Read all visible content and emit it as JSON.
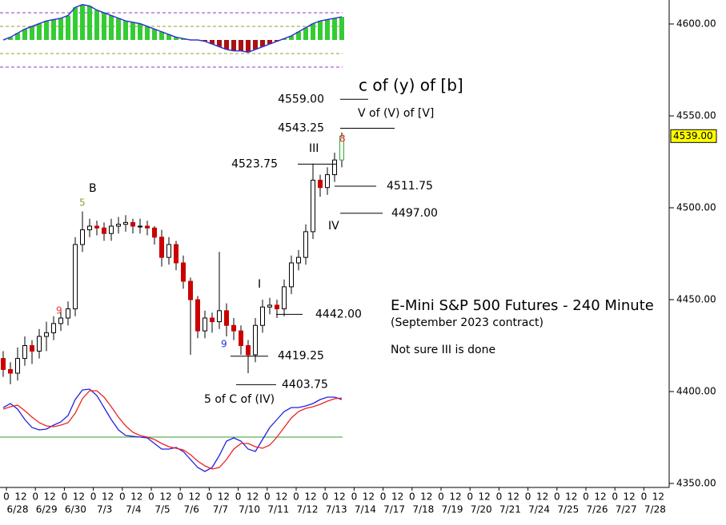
{
  "chart_data": {
    "type": "candlestick",
    "title": "E-Mini S&P 500 Futures - 240 Minute",
    "subtitle": "(September 2023 contract)",
    "note": "Not sure III is done",
    "ylim": [
      4350,
      4600
    ],
    "yticks": [
      {
        "value": 4350,
        "label": "4350.00"
      },
      {
        "value": 4400,
        "label": "4400.00"
      },
      {
        "value": 4450,
        "label": "4450.00"
      },
      {
        "value": 4500,
        "label": "4500.00"
      },
      {
        "value": 4550,
        "label": "4550.00"
      },
      {
        "value": 4600,
        "label": "4600.00"
      }
    ],
    "last_price": {
      "value": 4539,
      "label": "4539.00"
    },
    "dates": [
      "6/28",
      "6/29",
      "6/30",
      "7/3",
      "7/4",
      "7/5",
      "7/6",
      "7/7",
      "7/10",
      "7/11",
      "7/12",
      "7/13",
      "7/14",
      "7/17",
      "7/18",
      "7/19",
      "7/20",
      "7/21",
      "7/24",
      "7/25",
      "7/26",
      "7/27",
      "7/28"
    ],
    "hour_ticks": [
      "0",
      "12"
    ],
    "candles": [
      [
        4418,
        4422,
        4408,
        4412
      ],
      [
        4412,
        4416,
        4404,
        4410
      ],
      [
        4410,
        4424,
        4406,
        4418
      ],
      [
        4418,
        4430,
        4414,
        4425
      ],
      [
        4425,
        4428,
        4415,
        4422
      ],
      [
        4422,
        4434,
        4418,
        4430
      ],
      [
        4430,
        4438,
        4422,
        4432
      ],
      [
        4432,
        4441,
        4428,
        4437
      ],
      [
        4437,
        4444,
        4433,
        4440
      ],
      [
        4440,
        4449,
        4436,
        4445
      ],
      [
        4445,
        4484,
        4441,
        4480
      ],
      [
        4480,
        4498,
        4476,
        4488
      ],
      [
        4488,
        4494,
        4484,
        4490
      ],
      [
        4490,
        4493,
        4485,
        4489
      ],
      [
        4489,
        4492,
        4482,
        4486
      ],
      [
        4486,
        4494,
        4482,
        4490
      ],
      [
        4490,
        4495,
        4486,
        4491
      ],
      [
        4491,
        4496,
        4487,
        4492
      ],
      [
        4492,
        4494,
        4486,
        4490
      ],
      [
        4490,
        4494,
        4486,
        4490
      ],
      [
        4490,
        4493,
        4485,
        4489
      ],
      [
        4489,
        4490,
        4480,
        4484
      ],
      [
        4484,
        4488,
        4468,
        4473
      ],
      [
        4473,
        4484,
        4469,
        4480
      ],
      [
        4480,
        4482,
        4466,
        4470
      ],
      [
        4470,
        4474,
        4456,
        4460
      ],
      [
        4460,
        4462,
        4420,
        4450
      ],
      [
        4450,
        4452,
        4429,
        4433
      ],
      [
        4433,
        4444,
        4429,
        4440
      ],
      [
        4440,
        4443,
        4432,
        4438
      ],
      [
        4438,
        4476,
        4434,
        4444
      ],
      [
        4444,
        4448,
        4430,
        4436
      ],
      [
        4436,
        4440,
        4428,
        4433
      ],
      [
        4433,
        4436,
        4420,
        4425
      ],
      [
        4425,
        4428,
        4410,
        4420
      ],
      [
        4420,
        4440,
        4416,
        4436
      ],
      [
        4436,
        4450,
        4432,
        4446
      ],
      [
        4446,
        4451,
        4442,
        4447
      ],
      [
        4447,
        4450,
        4440,
        4445
      ],
      [
        4445,
        4461,
        4441,
        4457
      ],
      [
        4457,
        4474,
        4453,
        4470
      ],
      [
        4470,
        4477,
        4466,
        4473
      ],
      [
        4473,
        4491,
        4469,
        4487
      ],
      [
        4487,
        4524,
        4483,
        4515
      ],
      [
        4515,
        4518,
        4506,
        4511
      ],
      [
        4511,
        4522,
        4507,
        4518
      ],
      [
        4518,
        4530,
        4514,
        4526
      ],
      [
        4526,
        4541,
        4522,
        4539
      ]
    ],
    "candle_colors": {
      "up": "#ffffff",
      "down": "#cc0000",
      "outline": "#000000"
    },
    "histogram": {
      "lim": [
        -22,
        26
      ],
      "levels": [
        20,
        10,
        -10,
        -20
      ],
      "level_colors": [
        "#9933cc",
        "#999933",
        "#999933",
        "#9933cc"
      ],
      "up_color": "#33cc33",
      "down_color": "#aa1111",
      "line_color": "#3333cc",
      "values": [
        0,
        2,
        5,
        8,
        10,
        12,
        14,
        15,
        16,
        18,
        24,
        26,
        25,
        22,
        20,
        18,
        16,
        14,
        13,
        12,
        10,
        8,
        6,
        4,
        2,
        1,
        0,
        0,
        -1,
        -3,
        -5,
        -7,
        -8,
        -8,
        -9,
        -7,
        -5,
        -3,
        -1,
        1,
        3,
        6,
        9,
        12,
        14,
        15,
        16,
        17
      ]
    },
    "oscillator": {
      "lim": [
        -60,
        70
      ],
      "zero": 0,
      "zero_color": "#339933",
      "series": [
        {
          "color": "#2222dd",
          "values": [
            37,
            42,
            35,
            22,
            12,
            9,
            10,
            15,
            19,
            27,
            47,
            59,
            60,
            52,
            37,
            22,
            9,
            2,
            1,
            0,
            -1,
            -8,
            -15,
            -15,
            -13,
            -18,
            -28,
            -38,
            -43,
            -38,
            -23,
            -5,
            -1,
            -5,
            -15,
            -18,
            -3,
            12,
            22,
            32,
            37,
            37,
            39,
            42,
            47,
            50,
            50,
            47
          ]
        },
        {
          "color": "#ee2222",
          "values": [
            35,
            38,
            40,
            33,
            25,
            18,
            14,
            13,
            15,
            18,
            30,
            48,
            58,
            58,
            50,
            38,
            25,
            14,
            6,
            2,
            0,
            -3,
            -8,
            -12,
            -14,
            -16,
            -22,
            -30,
            -36,
            -40,
            -38,
            -28,
            -15,
            -8,
            -8,
            -12,
            -14,
            -10,
            0,
            12,
            24,
            32,
            36,
            38,
            41,
            45,
            48,
            49
          ]
        }
      ]
    },
    "price_levels": [
      {
        "value": 4559,
        "label": "4559.00"
      },
      {
        "value": 4543.25,
        "label": "4543.25"
      },
      {
        "value": 4523.75,
        "label": "4523.75"
      },
      {
        "value": 4511.75,
        "label": "4511.75"
      },
      {
        "value": 4497,
        "label": "4497.00"
      },
      {
        "value": 4442,
        "label": "4442.00"
      },
      {
        "value": 4419.25,
        "label": "4419.25"
      },
      {
        "value": 4403.75,
        "label": "4403.75"
      }
    ],
    "wave_labels": [
      {
        "text": "c of (y) of [b]",
        "color": "#000000"
      },
      {
        "text": "V of (V) of [V]",
        "color": "#000000"
      },
      {
        "text": "III",
        "color": "#000000"
      },
      {
        "text": "IV",
        "color": "#000000"
      },
      {
        "text": "I",
        "color": "#000000"
      },
      {
        "text": "B",
        "color": "#000000"
      },
      {
        "text": "5",
        "color": "#999933"
      },
      {
        "text": "9",
        "color": "#ee3333"
      },
      {
        "text": "9",
        "color": "#2233cc"
      },
      {
        "text": "8",
        "color": "#ee3333"
      },
      {
        "text": "5 of C of (IV)",
        "color": "#000000"
      }
    ]
  }
}
